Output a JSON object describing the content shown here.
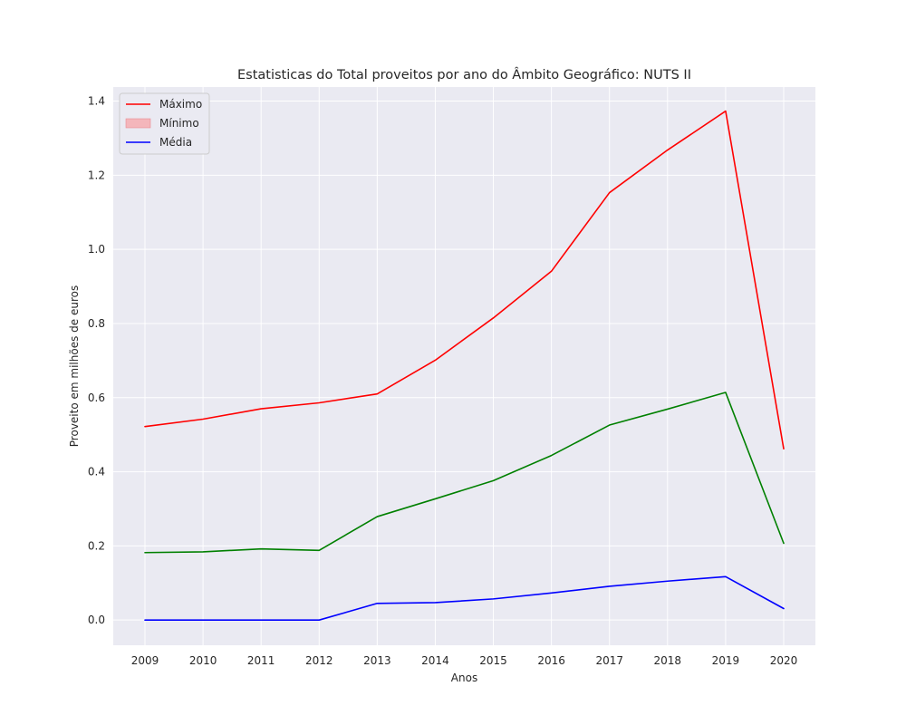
{
  "chart_data": {
    "type": "line",
    "title": "Estatisticas do Total proveitos por ano do Âmbito Geográfico: NUTS II",
    "xlabel": "Anos",
    "ylabel": "Proveito em milhões de euros",
    "x": [
      2009,
      2010,
      2011,
      2012,
      2013,
      2014,
      2015,
      2016,
      2017,
      2018,
      2019,
      2020
    ],
    "ylim": [
      -0.068,
      1.438
    ],
    "yticks": [
      0.0,
      0.2,
      0.4,
      0.6,
      0.8,
      1.0,
      1.2,
      1.4
    ],
    "ytick_labels": [
      "0.0",
      "0.2",
      "0.4",
      "0.6",
      "0.8",
      "1.0",
      "1.2",
      "1.4"
    ],
    "xtick_labels": [
      "2009",
      "2010",
      "2011",
      "2012",
      "2013",
      "2014",
      "2015",
      "2016",
      "2017",
      "2018",
      "2019",
      "2020"
    ],
    "grid": true,
    "legend_position": "top-left",
    "series": [
      {
        "name": "Máximo",
        "color": "#ff0000",
        "values": [
          0.522,
          0.542,
          0.57,
          0.586,
          0.61,
          0.701,
          0.815,
          0.941,
          1.153,
          1.268,
          1.373,
          0.462
        ]
      },
      {
        "name": "",
        "color": "#008000",
        "values": [
          0.182,
          0.184,
          0.192,
          0.188,
          0.279,
          0.327,
          0.376,
          0.444,
          0.526,
          0.569,
          0.614,
          0.207
        ]
      },
      {
        "name": "Média",
        "color": "#0000ff",
        "values": [
          0.0,
          0.0,
          0.0,
          0.0,
          0.045,
          0.047,
          0.057,
          0.073,
          0.091,
          0.105,
          0.117,
          0.031
        ]
      }
    ],
    "legend": [
      {
        "label": "Máximo",
        "kind": "line",
        "color": "#ff0000"
      },
      {
        "label": "Mínimo",
        "kind": "patch",
        "color": "#f4b6bb"
      },
      {
        "label": "Média",
        "kind": "line",
        "color": "#0000ff"
      }
    ]
  }
}
